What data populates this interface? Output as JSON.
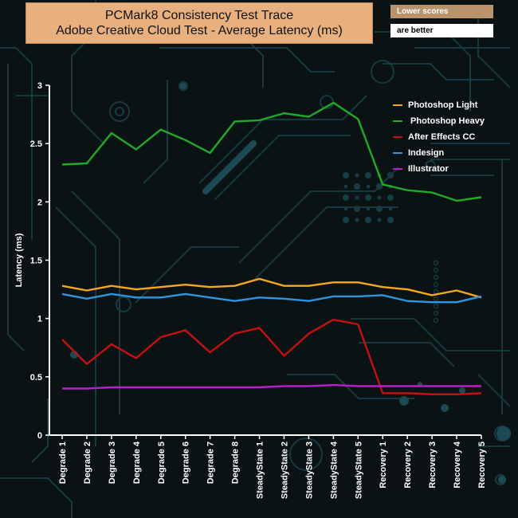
{
  "header": {
    "title_line1": "PCMark8 Consistency Test Trace",
    "title_line2": "Adobe Creative Cloud Test -  Average Latency (ms)",
    "note_top": "Lower scores",
    "note_bottom": "are better"
  },
  "colors": {
    "background": "#0b1214",
    "circuit": "#173a40",
    "axis": "#ffffff",
    "title_box": "#e8b07f",
    "note_top_box": "#b9936c"
  },
  "chart_data": {
    "type": "line",
    "title": "PCMark8 Consistency Test Trace Adobe Creative Cloud Test -  Average Latency (ms)",
    "xlabel": "",
    "ylabel": "Latency (ms)",
    "ylim": [
      0,
      3
    ],
    "yticks": [
      "0",
      "0.5",
      "1",
      "1.5",
      "2",
      "2.5",
      "3"
    ],
    "grid": false,
    "legend_position": "top-right",
    "categories": [
      "Degrade 1",
      "Degrade 2",
      "Degrade 3",
      "Degrade 4",
      "Degrade 5",
      "Degrade 6",
      "Degrade 7",
      "Degrade 8",
      "SteadyState 1",
      "SteadyState 2",
      "SteadyState 3",
      "SteadyState 4",
      "SteadyState 5",
      "Recovery 1",
      "Recovery 2",
      "Recovery 3",
      "Recovery 4",
      "Recovery 5"
    ],
    "series": [
      {
        "name": "Photoshop Light",
        "color": "#f5a623",
        "values": [
          1.28,
          1.24,
          1.28,
          1.25,
          1.27,
          1.29,
          1.27,
          1.28,
          1.34,
          1.28,
          1.28,
          1.31,
          1.31,
          1.27,
          1.25,
          1.2,
          1.24,
          1.18
        ]
      },
      {
        "name": " Photoshop Heavy",
        "color": "#1faa28",
        "values": [
          2.32,
          2.33,
          2.59,
          2.45,
          2.62,
          2.53,
          2.42,
          2.69,
          2.7,
          2.76,
          2.73,
          2.85,
          2.71,
          2.15,
          2.1,
          2.08,
          2.01,
          2.04
        ]
      },
      {
        "name": "After Effects CC",
        "color": "#c41111",
        "values": [
          0.82,
          0.61,
          0.78,
          0.66,
          0.84,
          0.9,
          0.71,
          0.87,
          0.92,
          0.68,
          0.87,
          0.99,
          0.95,
          0.36,
          0.36,
          0.35,
          0.35,
          0.36
        ]
      },
      {
        "name": "Indesign",
        "color": "#2f95e0",
        "values": [
          1.21,
          1.17,
          1.21,
          1.18,
          1.18,
          1.21,
          1.18,
          1.15,
          1.18,
          1.17,
          1.15,
          1.19,
          1.19,
          1.2,
          1.15,
          1.14,
          1.14,
          1.19
        ]
      },
      {
        "name": "Illustrator",
        "color": "#b61fc9",
        "values": [
          0.4,
          0.4,
          0.41,
          0.41,
          0.41,
          0.41,
          0.41,
          0.41,
          0.41,
          0.42,
          0.42,
          0.43,
          0.42,
          0.42,
          0.42,
          0.42,
          0.42,
          0.42
        ]
      }
    ]
  }
}
